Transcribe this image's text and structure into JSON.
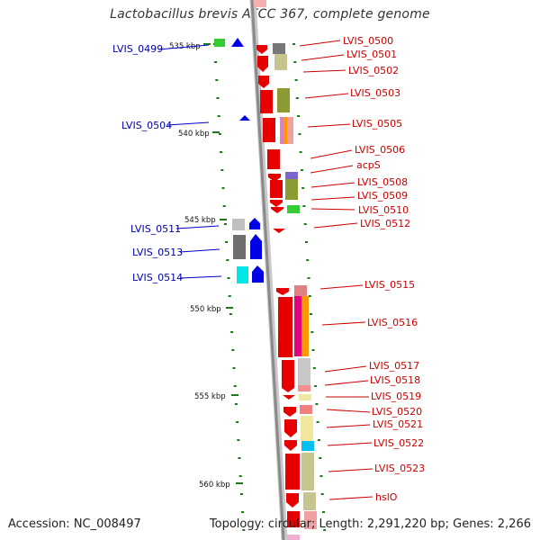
{
  "title": "Lactobacillus brevis ATCC 367, complete genome",
  "footer": {
    "accession": "Accession: NC_008497",
    "topology": "Topology: circular; Length: 2,291,220 bp; Genes: 2,266"
  },
  "scale_ticks": [
    "535 kbp",
    "540 kbp",
    "545 kbp",
    "550 kbp",
    "555 kbp",
    "560 kbp"
  ],
  "left_genes": [
    "LVIS_0499",
    "LVIS_0504",
    "LVIS_0511",
    "LVIS_0513",
    "LVIS_0514"
  ],
  "right_genes": [
    "LVIS_0500",
    "LVIS_0501",
    "LVIS_0502",
    "LVIS_0503",
    "LVIS_0505",
    "LVIS_0506",
    "acpS",
    "LVIS_0508",
    "LVIS_0509",
    "LVIS_0510",
    "LVIS_0512",
    "LVIS_0515",
    "LVIS_0516",
    "LVIS_0517",
    "LVIS_0518",
    "LVIS_0519",
    "LVIS_0520",
    "LVIS_0521",
    "LVIS_0522",
    "LVIS_0523",
    "hslO"
  ],
  "colors": {
    "forward_strand": "#e60000",
    "reverse_strand": "#0000e6",
    "backbone": "#888888",
    "tick": "#1a7a1a",
    "right_label": "#cc0000",
    "left_label": "#0000aa"
  }
}
